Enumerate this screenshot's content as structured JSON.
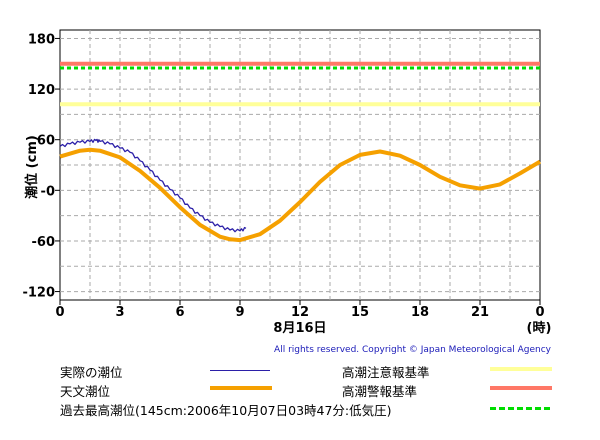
{
  "chart_data": {
    "type": "line",
    "xlabel": "8月16日",
    "xlabel_right": "(時)",
    "ylabel": "潮位 (cm)",
    "x_ticks": [
      "0",
      "3",
      "6",
      "9",
      "12",
      "15",
      "18",
      "21",
      "0"
    ],
    "y_ticks": [
      "180",
      "120",
      "60",
      "-0",
      "-60",
      "-120"
    ],
    "y_tick_values": [
      180,
      120,
      60,
      0,
      -60,
      -120
    ],
    "xlim": [
      0,
      24
    ],
    "ylim": [
      -130,
      190
    ],
    "grid": true,
    "thresholds": [
      {
        "name": "高潮注意報基準",
        "value": 102,
        "color": "#ffff99"
      },
      {
        "name": "高潮警報基準",
        "value": 150,
        "color": "#ff7766"
      },
      {
        "name": "過去最高潮位(145cm:2006年10月07日03時47分:低気圧)",
        "value": 145,
        "color": "#00dd00"
      }
    ],
    "series": [
      {
        "name": "実際の潮位",
        "color": "#2b1fa8",
        "x": [
          0,
          0.5,
          1,
          1.5,
          1.8,
          2,
          2.5,
          3,
          3.5,
          4,
          4.5,
          5,
          5.5,
          6,
          6.5,
          7,
          7.5,
          8,
          8.5,
          9,
          9.3
        ],
        "y": [
          52,
          55,
          57,
          58,
          59,
          58,
          55,
          50,
          45,
          35,
          24,
          12,
          1,
          -9,
          -21,
          -30,
          -38,
          -43,
          -47,
          -48,
          -45
        ]
      },
      {
        "name": "天文潮位",
        "color": "#f5a000",
        "x": [
          0,
          1,
          1.5,
          2,
          3,
          4,
          5,
          6,
          7,
          8,
          8.5,
          9,
          10,
          11,
          12,
          13,
          14,
          15,
          16,
          17,
          18,
          19,
          20,
          21,
          22,
          23,
          24
        ],
        "y": [
          40,
          47,
          48,
          47,
          39,
          23,
          3,
          -20,
          -41,
          -55,
          -58,
          -59,
          -52,
          -36,
          -14,
          10,
          30,
          42,
          46,
          41,
          30,
          16,
          6,
          2,
          7,
          20,
          34
        ]
      }
    ]
  },
  "copyright": "All rights reserved. Copyright © Japan Meteorological Agency",
  "legend": {
    "observed": "実際の潮位",
    "astronomical": "天文潮位",
    "record": "過去最高潮位(145cm:2006年10月07日03時47分:低気圧)",
    "advisory": "高潮注意報基準",
    "warning": "高潮警報基準"
  }
}
